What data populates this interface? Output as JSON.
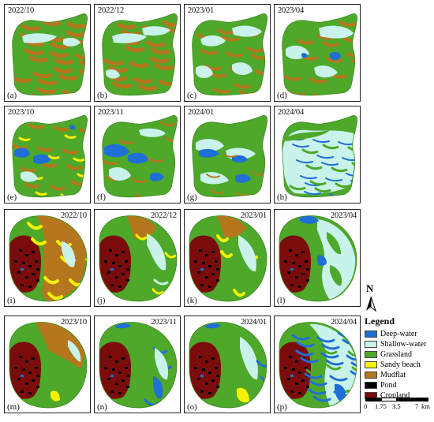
{
  "panels": [
    {
      "id": "a",
      "date": "2022/10",
      "label": "(a)",
      "shape": "north",
      "scene": "n1"
    },
    {
      "id": "b",
      "date": "2022/12",
      "label": "(b)",
      "shape": "north",
      "scene": "n2"
    },
    {
      "id": "c",
      "date": "2023/01",
      "label": "(c)",
      "shape": "north",
      "scene": "n3"
    },
    {
      "id": "d",
      "date": "2023/04",
      "label": "(d)",
      "shape": "north",
      "scene": "n4"
    },
    {
      "id": "e",
      "date": "2023/10",
      "label": "(e)",
      "shape": "north",
      "scene": "n5"
    },
    {
      "id": "f",
      "date": "2023/11",
      "label": "(f)",
      "shape": "north",
      "scene": "n6"
    },
    {
      "id": "g",
      "date": "2024/01",
      "label": "(g)",
      "shape": "north",
      "scene": "n7"
    },
    {
      "id": "h",
      "date": "2024/04",
      "label": "(h)",
      "shape": "north",
      "scene": "n8"
    },
    {
      "id": "i",
      "date": "2022/10",
      "label": "(i)",
      "shape": "south",
      "scene": "s1"
    },
    {
      "id": "j",
      "date": "2022/12",
      "label": "(j)",
      "shape": "south",
      "scene": "s2"
    },
    {
      "id": "k",
      "date": "2023/01",
      "label": "(k)",
      "shape": "south",
      "scene": "s3"
    },
    {
      "id": "l",
      "date": "2023/04",
      "label": "(l)",
      "shape": "south",
      "scene": "s4"
    },
    {
      "id": "m",
      "date": "2023/10",
      "label": "(m)",
      "shape": "south",
      "scene": "s5"
    },
    {
      "id": "n",
      "date": "2023/11",
      "label": "(n)",
      "shape": "south",
      "scene": "s6"
    },
    {
      "id": "o",
      "date": "2024/01",
      "label": "(o)",
      "shape": "south",
      "scene": "s7"
    },
    {
      "id": "p",
      "date": "2024/04",
      "label": "(p)",
      "shape": "south",
      "scene": "s8"
    }
  ],
  "north_arrow": {
    "label": "N"
  },
  "legend": {
    "title": "Legend",
    "items": [
      {
        "label": "Deep-water",
        "color": "#1f6fd6"
      },
      {
        "label": "Shallow-water",
        "color": "#c8f2ea"
      },
      {
        "label": "Grassland",
        "color": "#4ea82a"
      },
      {
        "label": "Sandy beach",
        "color": "#f5f200"
      },
      {
        "label": "Mudflat",
        "color": "#b5771e"
      },
      {
        "label": "Pond",
        "color": "#000000"
      },
      {
        "label": "Cropland",
        "color": "#7a0c0c"
      }
    ]
  },
  "scale_bar": {
    "ticks": [
      "0",
      "1.75",
      "3.5",
      "7"
    ],
    "unit": "km"
  }
}
